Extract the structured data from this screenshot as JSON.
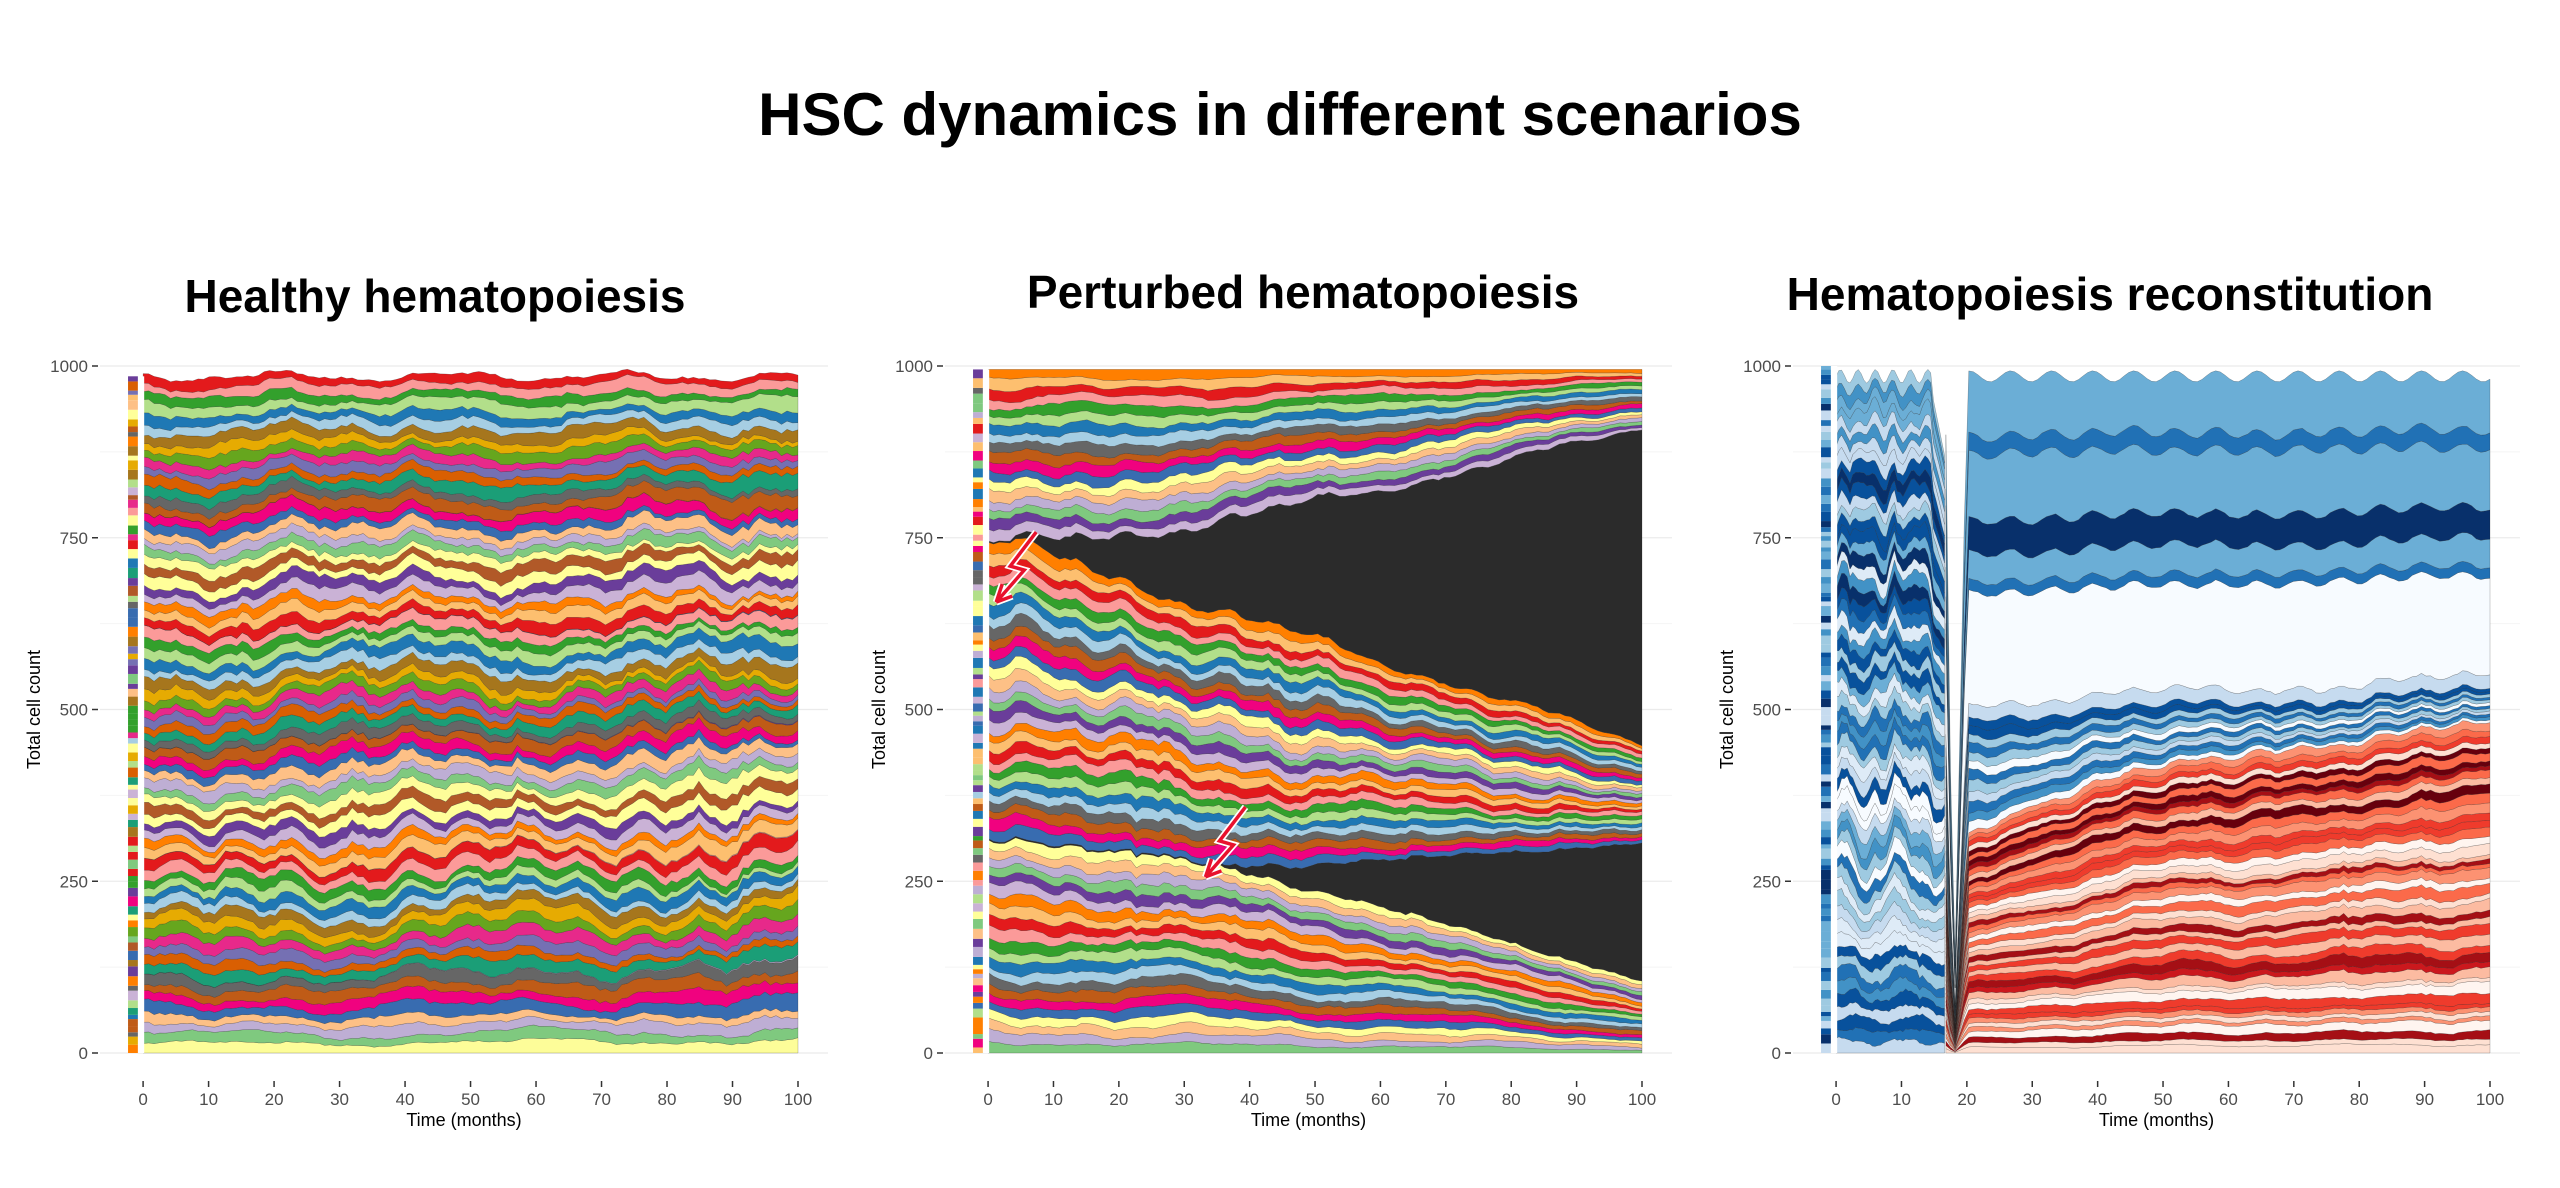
{
  "title": "HSC dynamics in different scenarios",
  "chart_data": [
    {
      "type": "area",
      "stacked": true,
      "title": "Healthy hematopoiesis",
      "xlabel": "Time (months)",
      "ylabel": "Total cell count",
      "xlim": [
        -2,
        100
      ],
      "ylim": [
        0,
        1000
      ],
      "x_ticks": [
        0,
        10,
        20,
        30,
        40,
        50,
        60,
        70,
        80,
        90,
        100
      ],
      "y_ticks": [
        0,
        250,
        500,
        750,
        1000
      ],
      "grid": true,
      "legend": "none",
      "palette": [
        "#fdfd99",
        "#7fc97f",
        "#beaed4",
        "#fdc086",
        "#386cb0",
        "#f0027f",
        "#bf5b17",
        "#666666",
        "#1b9e77",
        "#d95f02",
        "#7570b3",
        "#e7298a",
        "#66a61e",
        "#e6ab02",
        "#a6761d",
        "#a6cee3",
        "#1f78b4",
        "#b2df8a",
        "#33a02c",
        "#fb9a99",
        "#e31a1c",
        "#fdbf6f",
        "#ff7f00",
        "#cab2d6",
        "#6a3d9a",
        "#ffff99",
        "#b15928"
      ],
      "scenario": "healthy",
      "total": 985,
      "dominant_clones": [
        {
          "color": "#beaed4",
          "start_share": 0.012,
          "end_share": 0.085
        },
        {
          "color": "#fb9a99",
          "start_share": 0.012,
          "end_share": 0.07
        },
        {
          "color": "#6a3d9a",
          "start_share": 0.012,
          "end_share": 0.065
        },
        {
          "color": "#386cb0",
          "start_share": 0.012,
          "end_share": 0.05
        },
        {
          "color": "#ff7f00",
          "start_share": 0.012,
          "end_share": 0.04
        }
      ]
    },
    {
      "type": "area",
      "stacked": true,
      "title": "Perturbed hematopoiesis",
      "xlabel": "Time (months)",
      "ylabel": "Total cell count",
      "xlim": [
        -2,
        100
      ],
      "ylim": [
        0,
        1000
      ],
      "x_ticks": [
        0,
        10,
        20,
        30,
        40,
        50,
        60,
        70,
        80,
        90,
        100
      ],
      "y_ticks": [
        0,
        250,
        500,
        750,
        1000
      ],
      "grid": true,
      "legend": "none",
      "palette": [
        "#7fc97f",
        "#beaed4",
        "#fdc086",
        "#ffff99",
        "#386cb0",
        "#f0027f",
        "#bf5b17",
        "#666666",
        "#a6cee3",
        "#1f78b4",
        "#b2df8a",
        "#33a02c",
        "#fb9a99",
        "#e31a1c",
        "#fdbf6f",
        "#ff7f00",
        "#cab2d6",
        "#6a3d9a"
      ],
      "scenario": "perturbed",
      "total": 995,
      "perturbations": [
        {
          "x": 3,
          "y": 700,
          "clone_color": "#2b2b2b",
          "end_share": 0.46
        },
        {
          "x": 35,
          "y": 300,
          "clone_color": "#2b2b2b",
          "end_share": 0.2
        }
      ]
    },
    {
      "type": "area",
      "stacked": true,
      "title": "Hematopoiesis reconstitution",
      "xlabel": "Time (months)",
      "ylabel": "Total cell count",
      "xlim": [
        -2,
        100
      ],
      "ylim": [
        0,
        1000
      ],
      "x_ticks": [
        0,
        10,
        20,
        30,
        40,
        50,
        60,
        70,
        80,
        90,
        100
      ],
      "y_ticks": [
        0,
        250,
        500,
        750,
        1000
      ],
      "grid": true,
      "legend": "none",
      "scenario": "reconstitution",
      "total": 1000,
      "transplant_time": 18,
      "blue_palette": [
        "#08306b",
        "#08519c",
        "#2171b5",
        "#4292c6",
        "#6baed6",
        "#9ecae1",
        "#c6dbef",
        "#deebf7",
        "#f7fbff"
      ],
      "red_palette": [
        "#67000d",
        "#a50f15",
        "#cb181d",
        "#ef3b2c",
        "#fb6a4a",
        "#fc9272",
        "#fcbba1",
        "#fee0d2",
        "#fff5f0"
      ],
      "donor_clones": [
        {
          "color": "#6baed6",
          "end_share": 0.08
        },
        {
          "color": "#2171b5",
          "end_share": 0.025
        },
        {
          "color": "#6baed6",
          "end_share": 0.09
        },
        {
          "color": "#08306b",
          "end_share": 0.045
        },
        {
          "color": "#6baed6",
          "end_share": 0.04
        },
        {
          "color": "#2171b5",
          "end_share": 0.015
        },
        {
          "color": "#f7fbff",
          "end_share": 0.15
        },
        {
          "color": "#c6dbef",
          "end_share": 0.02
        }
      ]
    }
  ]
}
